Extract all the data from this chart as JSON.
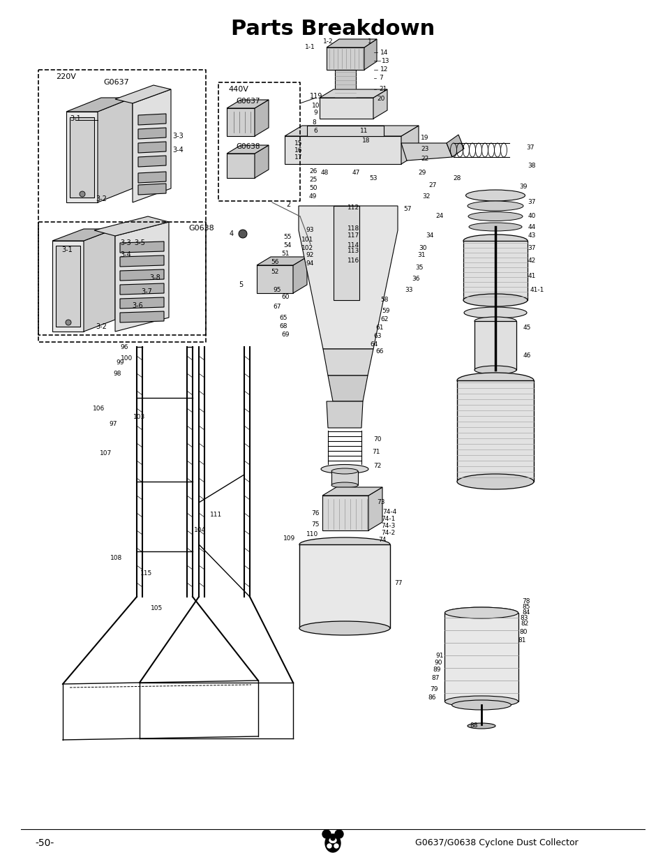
{
  "title": "Parts Breakdown",
  "footer_left": "-50-",
  "footer_right": "G0637/G0638 Cyclone Dust Collector",
  "background_color": "#ffffff",
  "title_fontsize": 22,
  "title_fontweight": "bold",
  "footer_fontsize": 10,
  "body_color": "#1a1a1a",
  "line_color": "#000000"
}
